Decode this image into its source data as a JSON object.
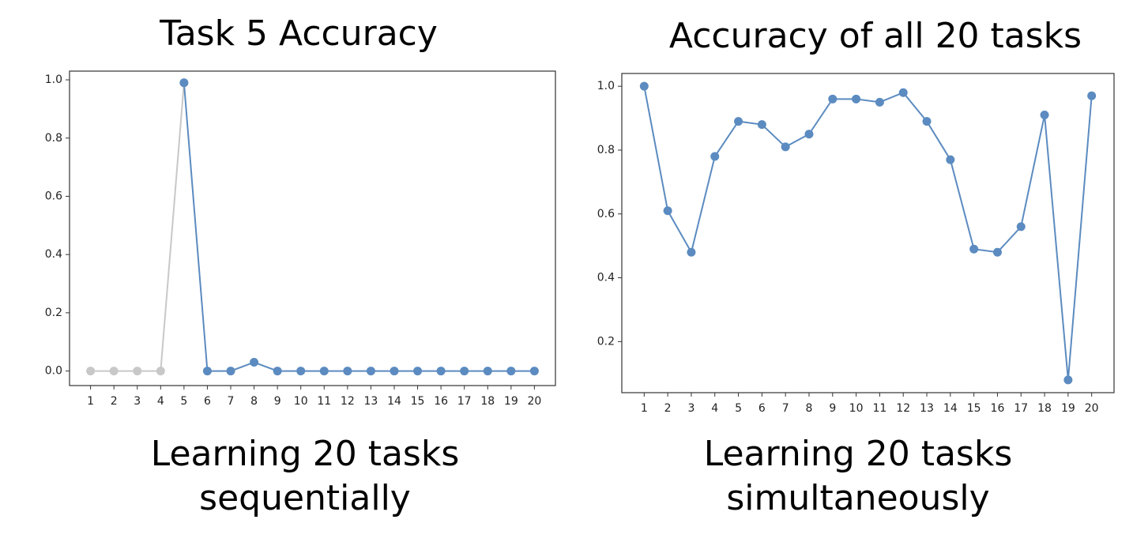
{
  "chart_data": [
    {
      "type": "line",
      "title": "Task 5 Accuracy",
      "caption": [
        "Learning 20 tasks",
        "sequentially"
      ],
      "x": [
        1,
        2,
        3,
        4,
        5,
        6,
        7,
        8,
        9,
        10,
        11,
        12,
        13,
        14,
        15,
        16,
        17,
        18,
        19,
        20
      ],
      "series": [
        {
          "color": "#c8c8c8",
          "values": [
            0,
            0,
            0,
            0,
            0.99,
            null,
            null,
            null,
            null,
            null,
            null,
            null,
            null,
            null,
            null,
            null,
            null,
            null,
            null,
            null
          ]
        },
        {
          "color": "#5b8bc0",
          "values": [
            null,
            null,
            null,
            null,
            0.99,
            0,
            0,
            0.03,
            0,
            0,
            0,
            0,
            0,
            0,
            0,
            0,
            0,
            0,
            0,
            0
          ]
        }
      ],
      "xlim": [
        0.1,
        20.9
      ],
      "xticks": [
        1,
        2,
        3,
        4,
        5,
        6,
        7,
        8,
        9,
        10,
        11,
        12,
        13,
        14,
        15,
        16,
        17,
        18,
        19,
        20
      ],
      "ylim": [
        -0.05,
        1.03
      ],
      "yticks": [
        {
          "value": 0,
          "label": "0.0"
        },
        0.2,
        0.4,
        0.6,
        0.8,
        {
          "value": 1,
          "label": "1.0"
        }
      ]
    },
    {
      "type": "line",
      "title": "Accuracy of all 20 tasks",
      "caption": [
        "Learning 20 tasks",
        "simultaneously"
      ],
      "x": [
        1,
        2,
        3,
        4,
        5,
        6,
        7,
        8,
        9,
        10,
        11,
        12,
        13,
        14,
        15,
        16,
        17,
        18,
        19,
        20
      ],
      "series": [
        {
          "color": "#5b8bc0",
          "values": [
            1.0,
            0.61,
            0.48,
            0.78,
            0.89,
            0.88,
            0.81,
            0.85,
            0.96,
            0.96,
            0.95,
            0.98,
            0.89,
            0.77,
            0.49,
            0.48,
            0.56,
            0.91,
            0.08,
            0.97
          ]
        }
      ],
      "xlim": [
        0.05,
        20.95
      ],
      "xticks": [
        1,
        2,
        3,
        4,
        5,
        6,
        7,
        8,
        9,
        10,
        11,
        12,
        13,
        14,
        15,
        16,
        17,
        18,
        19,
        20
      ],
      "ylim": [
        0.04,
        1.04
      ],
      "yticks": [
        0.2,
        0.4,
        0.6,
        0.8,
        {
          "value": 1,
          "label": "1.0"
        }
      ]
    }
  ]
}
